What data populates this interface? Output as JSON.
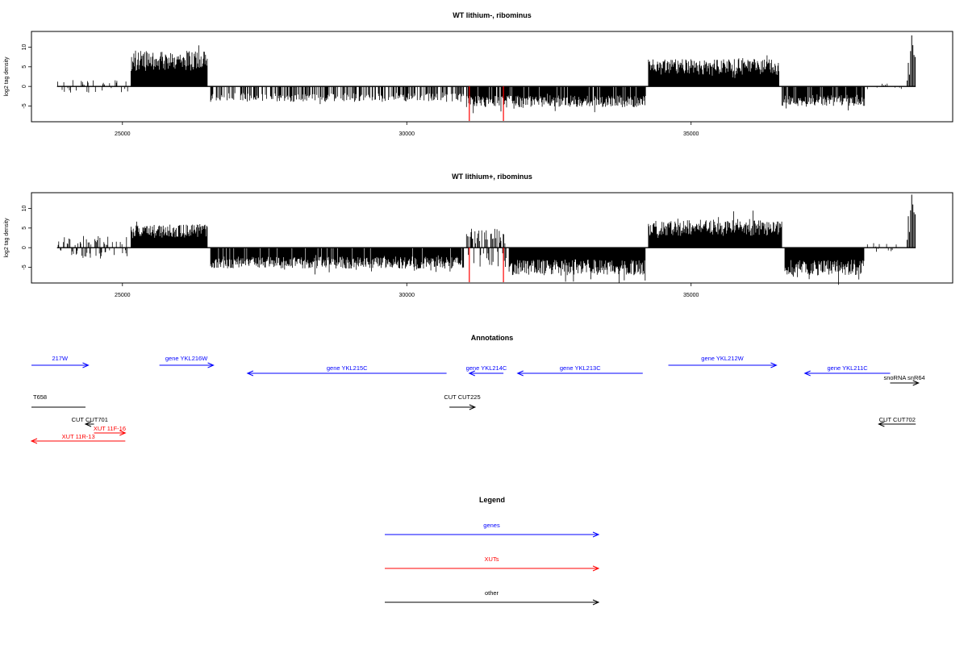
{
  "chart_data": [
    {
      "type": "bar",
      "title": "WT lithium-, ribominus",
      "xlabel": "",
      "ylabel": "log2 tag density",
      "xlim": [
        23400,
        39600
      ],
      "ylim": [
        -9,
        14
      ],
      "xticks": [
        25000,
        30000,
        35000
      ],
      "yticks": [
        -5,
        0,
        5,
        10
      ],
      "bar_color": "#000000",
      "highlight_color": "#ff0000",
      "baseline": [
        23850,
        38950
      ],
      "regions": [
        {
          "start": 23850,
          "end": 25100,
          "level": 0.8,
          "density": 0.25,
          "sign": 0,
          "seed": 1
        },
        {
          "start": 25150,
          "end": 26500,
          "level": 6.5,
          "density": 1.0,
          "sign": 1,
          "seed": 2
        },
        {
          "start": 26550,
          "end": 31000,
          "level": -2.8,
          "density": 0.55,
          "sign": -1,
          "seed": 3
        },
        {
          "start": 31050,
          "end": 34200,
          "level": -3.8,
          "density": 0.9,
          "sign": -1,
          "seed": 4
        },
        {
          "start": 34250,
          "end": 36550,
          "level": 5.0,
          "density": 1.0,
          "sign": 1,
          "seed": 5
        },
        {
          "start": 36600,
          "end": 38050,
          "level": -3.6,
          "density": 0.9,
          "sign": -1,
          "seed": 6
        },
        {
          "start": 38100,
          "end": 38700,
          "level": 0.4,
          "density": 0.15,
          "sign": 0,
          "seed": 7
        }
      ],
      "peaks": [
        {
          "x": 38800,
          "y": 1.5
        },
        {
          "x": 38820,
          "y": 6.0
        },
        {
          "x": 38840,
          "y": 3.0
        },
        {
          "x": 38860,
          "y": 9.0
        },
        {
          "x": 38880,
          "y": 13.0
        },
        {
          "x": 38900,
          "y": 10.5
        },
        {
          "x": 38920,
          "y": 8.0
        },
        {
          "x": 38940,
          "y": 7.5
        }
      ],
      "highlights": [
        {
          "x": 31100,
          "y": -8.8
        },
        {
          "x": 31700,
          "y": -8.8
        }
      ]
    },
    {
      "type": "bar",
      "title": "WT lithium+, ribominus",
      "xlabel": "",
      "ylabel": "log2 tag density",
      "xlim": [
        23400,
        39600
      ],
      "ylim": [
        -9,
        14
      ],
      "xticks": [
        25000,
        30000,
        35000
      ],
      "yticks": [
        -5,
        0,
        5,
        10
      ],
      "bar_color": "#000000",
      "highlight_color": "#ff0000",
      "baseline": [
        23850,
        38950
      ],
      "regions": [
        {
          "start": 23850,
          "end": 25100,
          "level": 1.5,
          "density": 0.45,
          "sign": 0,
          "seed": 11
        },
        {
          "start": 25150,
          "end": 26500,
          "level": 4.2,
          "density": 1.0,
          "sign": 1,
          "seed": 12
        },
        {
          "start": 26550,
          "end": 31000,
          "level": -3.8,
          "density": 0.95,
          "sign": -1,
          "seed": 13
        },
        {
          "start": 31050,
          "end": 31750,
          "level": -2.5,
          "density": 0.6,
          "sign": 0,
          "seed": 14
        },
        {
          "start": 31800,
          "end": 34200,
          "level": -5.0,
          "density": 1.0,
          "sign": -1,
          "seed": 15
        },
        {
          "start": 34250,
          "end": 36600,
          "level": 5.0,
          "density": 1.0,
          "sign": 1,
          "seed": 16
        },
        {
          "start": 36650,
          "end": 38050,
          "level": -5.0,
          "density": 1.0,
          "sign": -1,
          "seed": 17
        },
        {
          "start": 38100,
          "end": 38700,
          "level": 0.6,
          "density": 0.2,
          "sign": 0,
          "seed": 18
        }
      ],
      "peaks": [
        {
          "x": 38800,
          "y": 2.0
        },
        {
          "x": 38820,
          "y": 8.0
        },
        {
          "x": 38840,
          "y": 4.0
        },
        {
          "x": 38860,
          "y": 9.5
        },
        {
          "x": 38880,
          "y": 13.5
        },
        {
          "x": 38900,
          "y": 11.0
        },
        {
          "x": 38920,
          "y": 9.0
        },
        {
          "x": 38940,
          "y": 8.5
        }
      ],
      "highlights": [
        {
          "x": 31100,
          "y": -8.8
        },
        {
          "x": 31700,
          "y": -8.8
        }
      ]
    }
  ],
  "annotations": {
    "title": "Annotations",
    "xlim": [
      23400,
      39600
    ],
    "features": [
      {
        "label": "217W",
        "kind": "gene",
        "start": 23400,
        "end": 24400,
        "strand": "+",
        "row": 0
      },
      {
        "label": "gene YKL216W",
        "kind": "gene",
        "start": 25650,
        "end": 26600,
        "strand": "+",
        "row": 0
      },
      {
        "label": "gene YKL215C",
        "kind": "gene",
        "start": 27200,
        "end": 30700,
        "strand": "-",
        "row": 1
      },
      {
        "label": "gene YKL214C",
        "kind": "gene",
        "start": 31100,
        "end": 31700,
        "strand": "-",
        "row": 1
      },
      {
        "label": "gene YKL213C",
        "kind": "gene",
        "start": 31950,
        "end": 34150,
        "strand": "-",
        "row": 1
      },
      {
        "label": "gene YKL212W",
        "kind": "gene",
        "start": 34600,
        "end": 36500,
        "strand": "+",
        "row": 0
      },
      {
        "label": "gene YKL211C",
        "kind": "gene",
        "start": 37000,
        "end": 38500,
        "strand": "-",
        "row": 1
      },
      {
        "label": "snoRNA snR64",
        "kind": "other",
        "start": 38500,
        "end": 39000,
        "strand": "+",
        "row": 2
      },
      {
        "label": "T658",
        "kind": "other",
        "start": 23400,
        "end": 24350,
        "strand": ".",
        "row": 4
      },
      {
        "label": "CUT CUT701",
        "kind": "other",
        "start": 24350,
        "end": 24500,
        "strand": "-",
        "row": 5
      },
      {
        "label": "XUT 11F-16",
        "kind": "xut",
        "start": 24500,
        "end": 25050,
        "strand": "+",
        "row": 6
      },
      {
        "label": "XUT 11R-13",
        "kind": "xut",
        "start": 23400,
        "end": 25050,
        "strand": "-",
        "row": 7
      },
      {
        "label": "CUT CUT225",
        "kind": "other",
        "start": 30750,
        "end": 31200,
        "strand": "+",
        "row": 4
      },
      {
        "label": "CUT CUT702",
        "kind": "other",
        "start": 38300,
        "end": 38950,
        "strand": "-",
        "row": 5
      }
    ]
  },
  "legend": {
    "title": "Legend",
    "entries": [
      {
        "label": "genes",
        "color": "#0000ff"
      },
      {
        "label": "XUTs",
        "color": "#ff0000"
      },
      {
        "label": "other",
        "color": "#000000"
      }
    ]
  },
  "colors": {
    "gene": "#0000ff",
    "xut": "#ff0000",
    "other": "#000000"
  }
}
